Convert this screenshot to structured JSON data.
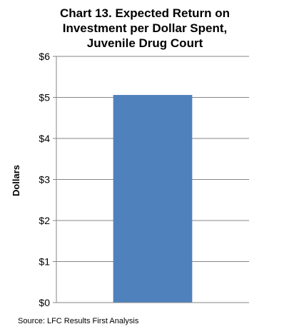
{
  "chart_data": {
    "type": "bar",
    "title_lines": [
      "Chart 13. Expected Return on",
      "Investment per Dollar Spent,",
      "Juvenile Drug Court"
    ],
    "categories": [
      ""
    ],
    "values": [
      5.06
    ],
    "ylabel": "Dollars",
    "xlabel": "",
    "ylim": [
      0,
      6
    ],
    "yticks": [
      0,
      1,
      2,
      3,
      4,
      5,
      6
    ],
    "ytick_labels": [
      "$0",
      "$1",
      "$2",
      "$3",
      "$4",
      "$5",
      "$6"
    ],
    "grid": true,
    "legend": "none",
    "bar_color": "#4f81bd"
  },
  "source": "Source: LFC Results First Analysis"
}
